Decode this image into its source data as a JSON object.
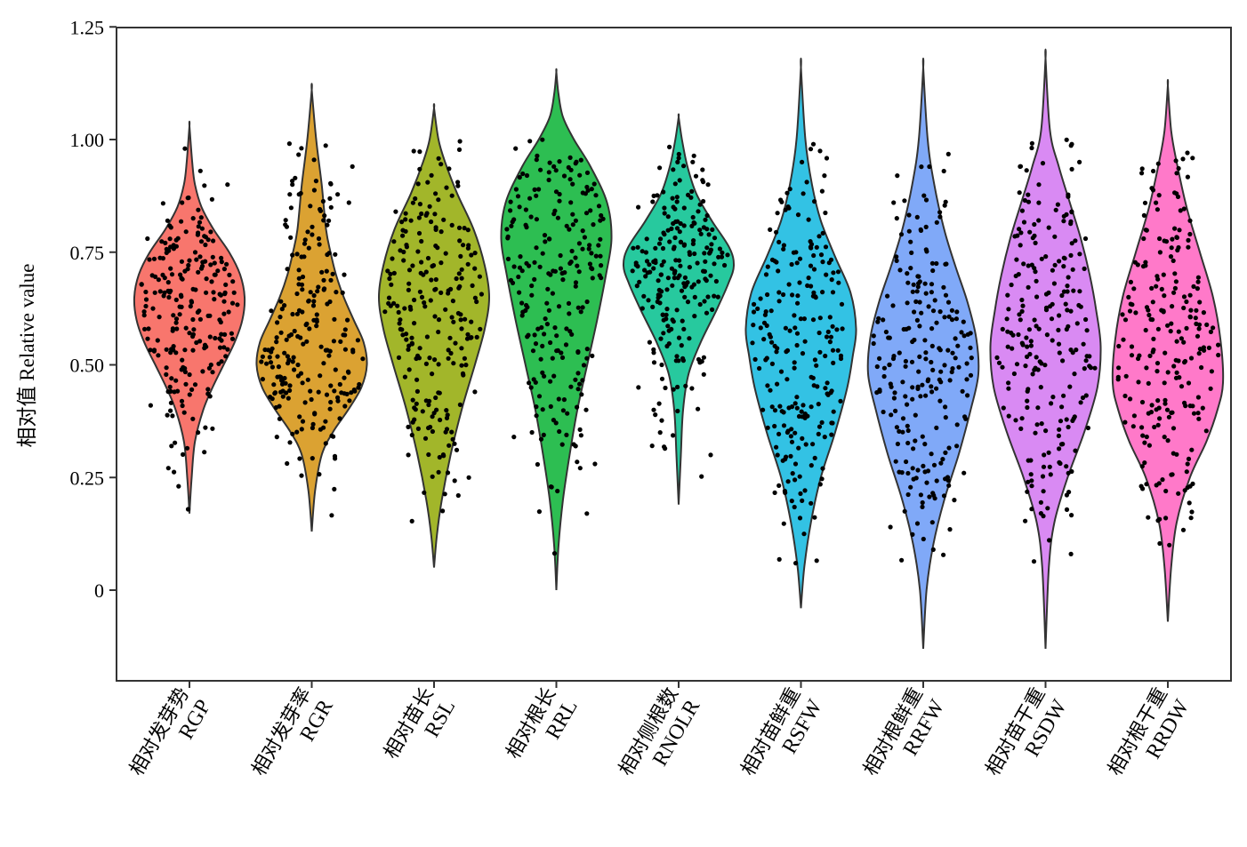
{
  "chart_data": {
    "type": "violin",
    "ylabel": "相对值 Relative value",
    "yticks": [
      "0",
      "0.25",
      "0.50",
      "0.75",
      "1.00",
      "1.25"
    ],
    "ytick_values": [
      0,
      0.25,
      0.5,
      0.75,
      1.0,
      1.25
    ],
    "ylim": [
      -0.2,
      1.25
    ],
    "grid": false,
    "jitter_points": true,
    "categories": [
      {
        "cn": "相对发芽势",
        "en": "RGP",
        "color": "#F8766D",
        "range": [
          0.17,
          1.03
        ],
        "points": [
          0.58,
          0.62,
          0.66,
          0.7,
          0.74,
          0.78,
          0.82,
          0.86,
          0.9,
          0.54,
          0.5,
          0.47,
          0.44,
          0.41,
          0.38,
          0.35,
          0.32
        ],
        "shape": [
          [
            0.17,
            0.0
          ],
          [
            0.25,
            0.04
          ],
          [
            0.33,
            0.1
          ],
          [
            0.4,
            0.25
          ],
          [
            0.45,
            0.42
          ],
          [
            0.5,
            0.62
          ],
          [
            0.55,
            0.82
          ],
          [
            0.6,
            0.96
          ],
          [
            0.65,
            1.0
          ],
          [
            0.7,
            0.92
          ],
          [
            0.75,
            0.72
          ],
          [
            0.8,
            0.44
          ],
          [
            0.85,
            0.22
          ],
          [
            0.9,
            0.1
          ],
          [
            0.95,
            0.05
          ],
          [
            1.03,
            0.0
          ]
        ]
      },
      {
        "cn": "相对发芽率",
        "en": "RGR",
        "color": "#DBA232",
        "range": [
          0.13,
          1.11
        ],
        "points": [
          0.5,
          0.54,
          0.58,
          0.62,
          0.66,
          0.7,
          0.74,
          0.78,
          0.82,
          0.86,
          0.9,
          0.94,
          0.46,
          0.42,
          0.38,
          0.34
        ],
        "shape": [
          [
            0.13,
            0.0
          ],
          [
            0.22,
            0.06
          ],
          [
            0.3,
            0.18
          ],
          [
            0.35,
            0.38
          ],
          [
            0.4,
            0.66
          ],
          [
            0.45,
            0.9
          ],
          [
            0.5,
            1.0
          ],
          [
            0.55,
            0.94
          ],
          [
            0.6,
            0.76
          ],
          [
            0.65,
            0.58
          ],
          [
            0.7,
            0.44
          ],
          [
            0.75,
            0.34
          ],
          [
            0.8,
            0.26
          ],
          [
            0.9,
            0.18
          ],
          [
            1.0,
            0.08
          ],
          [
            1.11,
            0.0
          ]
        ]
      },
      {
        "cn": "相对苗长",
        "en": "RSL",
        "color": "#A2B62A",
        "range": [
          0.05,
          1.07
        ],
        "points": [
          0.52,
          0.56,
          0.6,
          0.64,
          0.68,
          0.72,
          0.76,
          0.8,
          0.84,
          0.88,
          0.48,
          0.44,
          0.4,
          0.36,
          0.3,
          0.25,
          0.21
        ],
        "shape": [
          [
            0.05,
            0.0
          ],
          [
            0.12,
            0.05
          ],
          [
            0.2,
            0.14
          ],
          [
            0.3,
            0.3
          ],
          [
            0.4,
            0.5
          ],
          [
            0.5,
            0.74
          ],
          [
            0.58,
            0.92
          ],
          [
            0.65,
            1.0
          ],
          [
            0.72,
            0.92
          ],
          [
            0.8,
            0.72
          ],
          [
            0.88,
            0.42
          ],
          [
            0.95,
            0.2
          ],
          [
            1.0,
            0.08
          ],
          [
            1.07,
            0.0
          ]
        ]
      },
      {
        "cn": "相对根长",
        "en": "RRL",
        "color": "#2DBE52",
        "range": [
          0.0,
          1.15
        ],
        "points": [
          0.4,
          0.46,
          0.52,
          0.58,
          0.64,
          0.7,
          0.76,
          0.82,
          0.88,
          0.94,
          0.98,
          0.34,
          0.28,
          0.22,
          0.17
        ],
        "shape": [
          [
            0.0,
            0.0
          ],
          [
            0.1,
            0.04
          ],
          [
            0.2,
            0.12
          ],
          [
            0.3,
            0.24
          ],
          [
            0.4,
            0.38
          ],
          [
            0.5,
            0.56
          ],
          [
            0.6,
            0.74
          ],
          [
            0.7,
            0.9
          ],
          [
            0.78,
            1.0
          ],
          [
            0.86,
            0.92
          ],
          [
            0.94,
            0.62
          ],
          [
            1.0,
            0.32
          ],
          [
            1.05,
            0.12
          ],
          [
            1.1,
            0.04
          ],
          [
            1.15,
            0.0
          ]
        ]
      },
      {
        "cn": "相对侧根数",
        "en": "RNOLR",
        "color": "#27C99E",
        "range": [
          0.19,
          1.05
        ],
        "points": [
          0.5,
          0.55,
          0.6,
          0.65,
          0.7,
          0.73,
          0.76,
          0.8,
          0.85,
          0.9,
          0.95,
          0.45,
          0.4,
          0.35,
          0.3
        ],
        "shape": [
          [
            0.19,
            0.0
          ],
          [
            0.3,
            0.04
          ],
          [
            0.4,
            0.08
          ],
          [
            0.48,
            0.18
          ],
          [
            0.55,
            0.4
          ],
          [
            0.62,
            0.68
          ],
          [
            0.68,
            0.9
          ],
          [
            0.72,
            1.0
          ],
          [
            0.76,
            0.92
          ],
          [
            0.82,
            0.6
          ],
          [
            0.88,
            0.32
          ],
          [
            0.94,
            0.16
          ],
          [
            1.0,
            0.06
          ],
          [
            1.05,
            0.0
          ]
        ]
      },
      {
        "cn": "相对苗鲜重",
        "en": "RSFW",
        "color": "#33C2E4",
        "range": [
          -0.04,
          1.16
        ],
        "points": [
          0.34,
          0.4,
          0.46,
          0.52,
          0.58,
          0.62,
          0.66,
          0.7,
          0.75,
          0.8,
          0.88,
          0.95,
          0.28,
          0.22,
          0.16
        ],
        "shape": [
          [
            -0.04,
            0.0
          ],
          [
            0.05,
            0.06
          ],
          [
            0.15,
            0.18
          ],
          [
            0.25,
            0.36
          ],
          [
            0.35,
            0.62
          ],
          [
            0.45,
            0.84
          ],
          [
            0.52,
            0.94
          ],
          [
            0.58,
            1.0
          ],
          [
            0.66,
            0.9
          ],
          [
            0.74,
            0.62
          ],
          [
            0.82,
            0.36
          ],
          [
            0.9,
            0.2
          ],
          [
            1.0,
            0.08
          ],
          [
            1.16,
            0.0
          ]
        ]
      },
      {
        "cn": "相对根鲜重",
        "en": "RRFW",
        "color": "#80A9F8",
        "range": [
          -0.13,
          1.16
        ],
        "points": [
          0.2,
          0.26,
          0.32,
          0.38,
          0.44,
          0.5,
          0.56,
          0.62,
          0.68,
          0.74,
          0.8,
          0.86,
          0.92,
          0.14,
          0.09
        ],
        "shape": [
          [
            -0.13,
            0.0
          ],
          [
            0.0,
            0.06
          ],
          [
            0.1,
            0.18
          ],
          [
            0.2,
            0.38
          ],
          [
            0.3,
            0.64
          ],
          [
            0.4,
            0.86
          ],
          [
            0.48,
            1.0
          ],
          [
            0.56,
            0.96
          ],
          [
            0.64,
            0.8
          ],
          [
            0.72,
            0.58
          ],
          [
            0.8,
            0.38
          ],
          [
            0.9,
            0.2
          ],
          [
            1.0,
            0.08
          ],
          [
            1.16,
            0.0
          ]
        ]
      },
      {
        "cn": "相对苗干重",
        "en": "RSDW",
        "color": "#D98AF3",
        "range": [
          -0.13,
          1.18
        ],
        "points": [
          0.3,
          0.36,
          0.42,
          0.48,
          0.54,
          0.6,
          0.66,
          0.72,
          0.78,
          0.84,
          0.9,
          0.95,
          0.24,
          0.18,
          0.08
        ],
        "shape": [
          [
            -0.13,
            0.0
          ],
          [
            0.05,
            0.06
          ],
          [
            0.15,
            0.16
          ],
          [
            0.25,
            0.4
          ],
          [
            0.35,
            0.7
          ],
          [
            0.45,
            0.94
          ],
          [
            0.54,
            1.0
          ],
          [
            0.62,
            0.92
          ],
          [
            0.7,
            0.8
          ],
          [
            0.78,
            0.64
          ],
          [
            0.86,
            0.44
          ],
          [
            0.94,
            0.24
          ],
          [
            1.02,
            0.08
          ],
          [
            1.18,
            0.0
          ]
        ]
      },
      {
        "cn": "相对根干重",
        "en": "RRDW",
        "color": "#FF79C9",
        "range": [
          -0.07,
          1.12
        ],
        "points": [
          0.28,
          0.34,
          0.4,
          0.46,
          0.52,
          0.58,
          0.64,
          0.7,
          0.76,
          0.82,
          0.88,
          0.93,
          0.22,
          0.16,
          0.1
        ],
        "shape": [
          [
            -0.07,
            0.0
          ],
          [
            0.05,
            0.06
          ],
          [
            0.15,
            0.16
          ],
          [
            0.25,
            0.4
          ],
          [
            0.33,
            0.7
          ],
          [
            0.4,
            0.9
          ],
          [
            0.46,
            1.0
          ],
          [
            0.55,
            0.96
          ],
          [
            0.65,
            0.82
          ],
          [
            0.75,
            0.58
          ],
          [
            0.85,
            0.34
          ],
          [
            0.95,
            0.16
          ],
          [
            1.02,
            0.06
          ],
          [
            1.12,
            0.0
          ]
        ]
      }
    ]
  }
}
